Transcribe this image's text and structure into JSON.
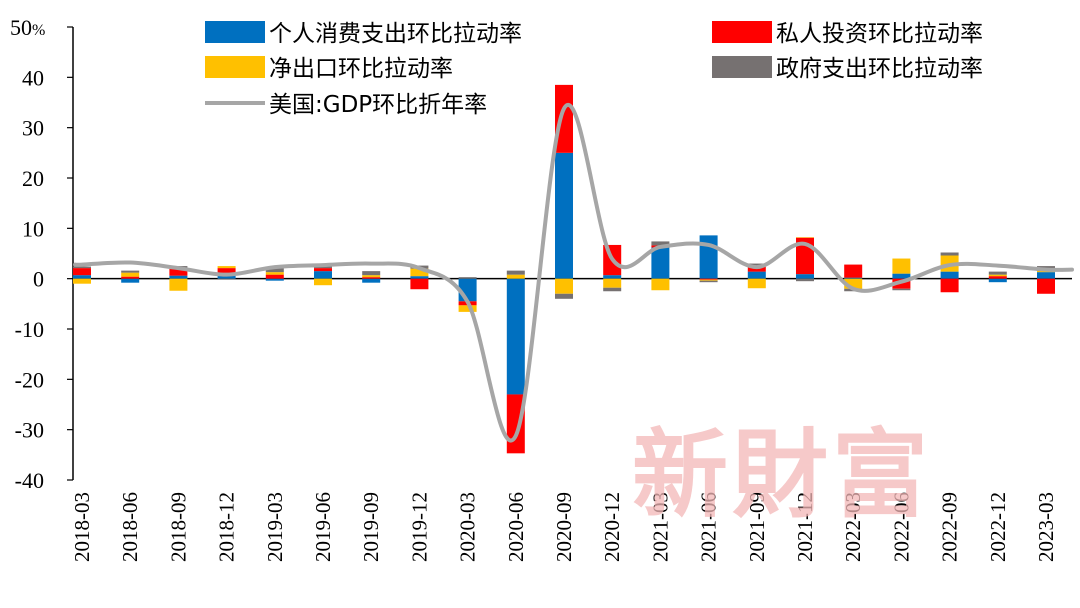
{
  "chart_data": {
    "type": "bar",
    "subtype": "stacked-bar-with-line",
    "ylim": [
      -40,
      50
    ],
    "yticks": [
      -40,
      -30,
      -20,
      -10,
      0,
      10,
      20,
      30,
      40,
      50
    ],
    "y_unit_label": "%",
    "grid": false,
    "legend_placement": "top",
    "categories": [
      "2018-03",
      "2018-06",
      "2018-09",
      "2018-12",
      "2019-03",
      "2019-06",
      "2019-09",
      "2019-12",
      "2020-03",
      "2020-06",
      "2020-09",
      "2020-12",
      "2021-03",
      "2021-06",
      "2021-09",
      "2021-12",
      "2022-03",
      "2022-06",
      "2022-09",
      "2022-12",
      "2023-03"
    ],
    "series": [
      {
        "name": "个人消费支出环比拉动率",
        "kind": "bar",
        "color": "#0070c0",
        "values": [
          0.7,
          -0.8,
          0.6,
          0.9,
          -0.4,
          1.5,
          -0.8,
          0.5,
          -4.5,
          -23,
          25,
          0.7,
          6.2,
          8.6,
          1.4,
          0.9,
          0.2,
          1.0,
          1.4,
          -0.7,
          1.3
        ]
      },
      {
        "name": "私人投资环比拉动率",
        "kind": "bar",
        "color": "#ff0000",
        "values": [
          1.4,
          0.4,
          1.5,
          1.2,
          0.8,
          0.6,
          0.3,
          -2.1,
          -0.8,
          -11.7,
          13.5,
          6.0,
          0.4,
          -0.2,
          1.0,
          7.3,
          2.6,
          -2.0,
          -2.7,
          0.5,
          -3.0
        ]
      },
      {
        "name": "净出口环比拉动率",
        "kind": "bar",
        "color": "#ffc000",
        "values": [
          -1.0,
          0.8,
          -2.4,
          0.4,
          0.5,
          -1.3,
          0.4,
          1.5,
          -1.3,
          0.8,
          -3.0,
          -1.8,
          -2.3,
          -0.2,
          -1.9,
          0.0,
          -2.0,
          3.0,
          3.2,
          0.3,
          0.4
        ]
      },
      {
        "name": "政府支出环比拉动率",
        "kind": "bar",
        "color": "#767171",
        "values": [
          0.3,
          0.4,
          0.4,
          -0.2,
          0.8,
          0.9,
          0.8,
          0.6,
          0.3,
          0.8,
          -1.0,
          -0.7,
          0.8,
          -0.3,
          0.6,
          -0.5,
          -0.5,
          -0.3,
          0.6,
          0.6,
          0.8
        ]
      },
      {
        "name": "美国:GDP环比折年率",
        "kind": "line",
        "color": "#a6a6a6",
        "values": [
          2.8,
          3.2,
          2.1,
          0.8,
          2.3,
          2.7,
          3.0,
          2.1,
          -4.6,
          -31.2,
          33.8,
          3.9,
          6.3,
          6.7,
          2.3,
          6.9,
          -2.0,
          -0.6,
          2.7,
          2.6,
          1.8
        ]
      }
    ]
  },
  "watermark": "新財富"
}
